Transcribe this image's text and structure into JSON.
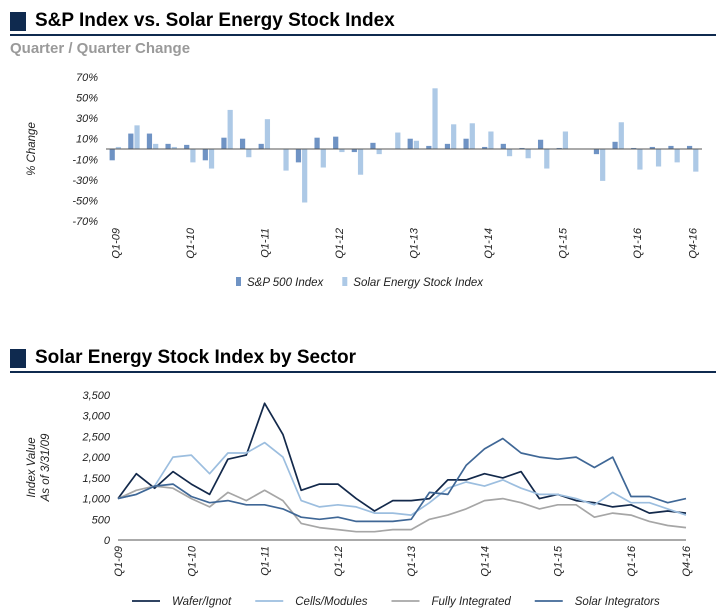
{
  "header1": {
    "title": "S&P Index vs. Solar Energy Stock Index"
  },
  "subtitle1": "Quarter / Quarter Change",
  "header2": {
    "title": "Solar Energy Stock Index by Sector"
  },
  "colors": {
    "header_bar": "#0f2a4f",
    "sp500": "#6f93c4",
    "solar_index": "#adc9e6",
    "wafer_ingot": "#13294b",
    "cells_modules": "#9cbedf",
    "fully_integrated": "#a6a6a6",
    "solar_integrators": "#3f6796"
  },
  "chart_data": [
    {
      "type": "bar",
      "ylabel": "% Change",
      "ylim": [
        -70,
        70
      ],
      "yticks": [
        "70%",
        "50%",
        "30%",
        "10%",
        "-10%",
        "-30%",
        "-50%",
        "-70%"
      ],
      "ytick_values": [
        70,
        50,
        30,
        10,
        -10,
        -30,
        -50,
        -70
      ],
      "categories": [
        "Q1-09",
        "Q2-09",
        "Q3-09",
        "Q4-09",
        "Q1-10",
        "Q2-10",
        "Q3-10",
        "Q4-10",
        "Q1-11",
        "Q2-11",
        "Q3-11",
        "Q4-11",
        "Q1-12",
        "Q2-12",
        "Q3-12",
        "Q4-12",
        "Q1-13",
        "Q2-13",
        "Q3-13",
        "Q4-13",
        "Q1-14",
        "Q2-14",
        "Q3-14",
        "Q4-14",
        "Q1-15",
        "Q2-15",
        "Q3-15",
        "Q4-15",
        "Q1-16",
        "Q2-16",
        "Q3-16",
        "Q4-16"
      ],
      "tick_labels": [
        "Q1-09",
        "",
        "",
        "",
        "Q1-10",
        "",
        "",
        "",
        "Q1-11",
        "",
        "",
        "",
        "Q1-12",
        "",
        "",
        "",
        "Q1-13",
        "",
        "",
        "",
        "Q1-14",
        "",
        "",
        "",
        "Q1-15",
        "",
        "",
        "",
        "Q1-16",
        "",
        "",
        "Q4-16"
      ],
      "series": [
        {
          "name": "S&P 500 Index",
          "values": [
            -11,
            15,
            15,
            5,
            4,
            -11,
            11,
            10,
            5,
            0,
            -13,
            11,
            12,
            -3,
            6,
            0,
            10,
            3,
            5,
            10,
            2,
            5,
            1,
            9,
            1,
            0,
            -5,
            7,
            1,
            2,
            3,
            3
          ]
        },
        {
          "name": "Solar Energy Stock Index",
          "values": [
            2,
            23,
            5,
            2,
            -13,
            -19,
            38,
            -8,
            29,
            -21,
            -52,
            -18,
            -3,
            -25,
            -5,
            16,
            8,
            59,
            24,
            25,
            17,
            -7,
            -9,
            -19,
            17,
            0,
            -31,
            26,
            -20,
            -17,
            -13,
            -22
          ]
        }
      ],
      "legend_position": "bottom"
    },
    {
      "type": "line",
      "ylabel_lines": [
        "Index Value",
        "As of 3/31/09"
      ],
      "ylim": [
        0,
        3500
      ],
      "yticks": [
        "3,500",
        "3,000",
        "2,500",
        "2,000",
        "1,500",
        "1,000",
        "500",
        "0"
      ],
      "ytick_values": [
        3500,
        3000,
        2500,
        2000,
        1500,
        1000,
        500,
        0
      ],
      "categories": [
        "Q1-09",
        "Q2-09",
        "Q3-09",
        "Q4-09",
        "Q1-10",
        "Q2-10",
        "Q3-10",
        "Q4-10",
        "Q1-11",
        "Q2-11",
        "Q3-11",
        "Q4-11",
        "Q1-12",
        "Q2-12",
        "Q3-12",
        "Q4-12",
        "Q1-13",
        "Q2-13",
        "Q3-13",
        "Q4-13",
        "Q1-14",
        "Q2-14",
        "Q3-14",
        "Q4-14",
        "Q1-15",
        "Q2-15",
        "Q3-15",
        "Q4-15",
        "Q1-16",
        "Q2-16",
        "Q3-16",
        "Q4-16"
      ],
      "tick_labels": [
        "Q1-09",
        "",
        "",
        "",
        "Q1-10",
        "",
        "",
        "",
        "Q1-11",
        "",
        "",
        "",
        "Q1-12",
        "",
        "",
        "",
        "Q1-13",
        "",
        "",
        "",
        "Q1-14",
        "",
        "",
        "",
        "Q1-15",
        "",
        "",
        "",
        "Q1-16",
        "",
        "",
        "Q4-16"
      ],
      "series": [
        {
          "name": "Wafer/Ignot",
          "values": [
            1000,
            1600,
            1250,
            1650,
            1350,
            1100,
            1950,
            2050,
            3300,
            2550,
            1200,
            1350,
            1350,
            1000,
            700,
            950,
            950,
            1000,
            1450,
            1450,
            1600,
            1500,
            1650,
            1000,
            1100,
            950,
            900,
            800,
            850,
            650,
            700,
            650
          ]
        },
        {
          "name": "Cells/Modules",
          "values": [
            1000,
            1100,
            1300,
            2000,
            2050,
            1600,
            2100,
            2100,
            2350,
            2000,
            950,
            800,
            850,
            800,
            650,
            650,
            600,
            900,
            1250,
            1400,
            1300,
            1450,
            1250,
            1100,
            1100,
            1000,
            850,
            1150,
            900,
            900,
            750,
            600
          ]
        },
        {
          "name": "Fully Integrated",
          "values": [
            1000,
            1200,
            1300,
            1250,
            1000,
            800,
            1150,
            950,
            1200,
            950,
            400,
            300,
            250,
            200,
            200,
            250,
            250,
            500,
            600,
            750,
            950,
            1000,
            900,
            750,
            850,
            850,
            550,
            650,
            600,
            450,
            350,
            300
          ]
        },
        {
          "name": "Solar Integrators",
          "values": [
            1000,
            1100,
            1300,
            1350,
            1050,
            900,
            950,
            850,
            850,
            750,
            550,
            500,
            550,
            450,
            450,
            450,
            500,
            1150,
            1100,
            1800,
            2200,
            2450,
            2100,
            2000,
            1950,
            2000,
            1750,
            2000,
            1050,
            1050,
            900,
            1000
          ]
        }
      ],
      "legend_position": "bottom"
    }
  ]
}
